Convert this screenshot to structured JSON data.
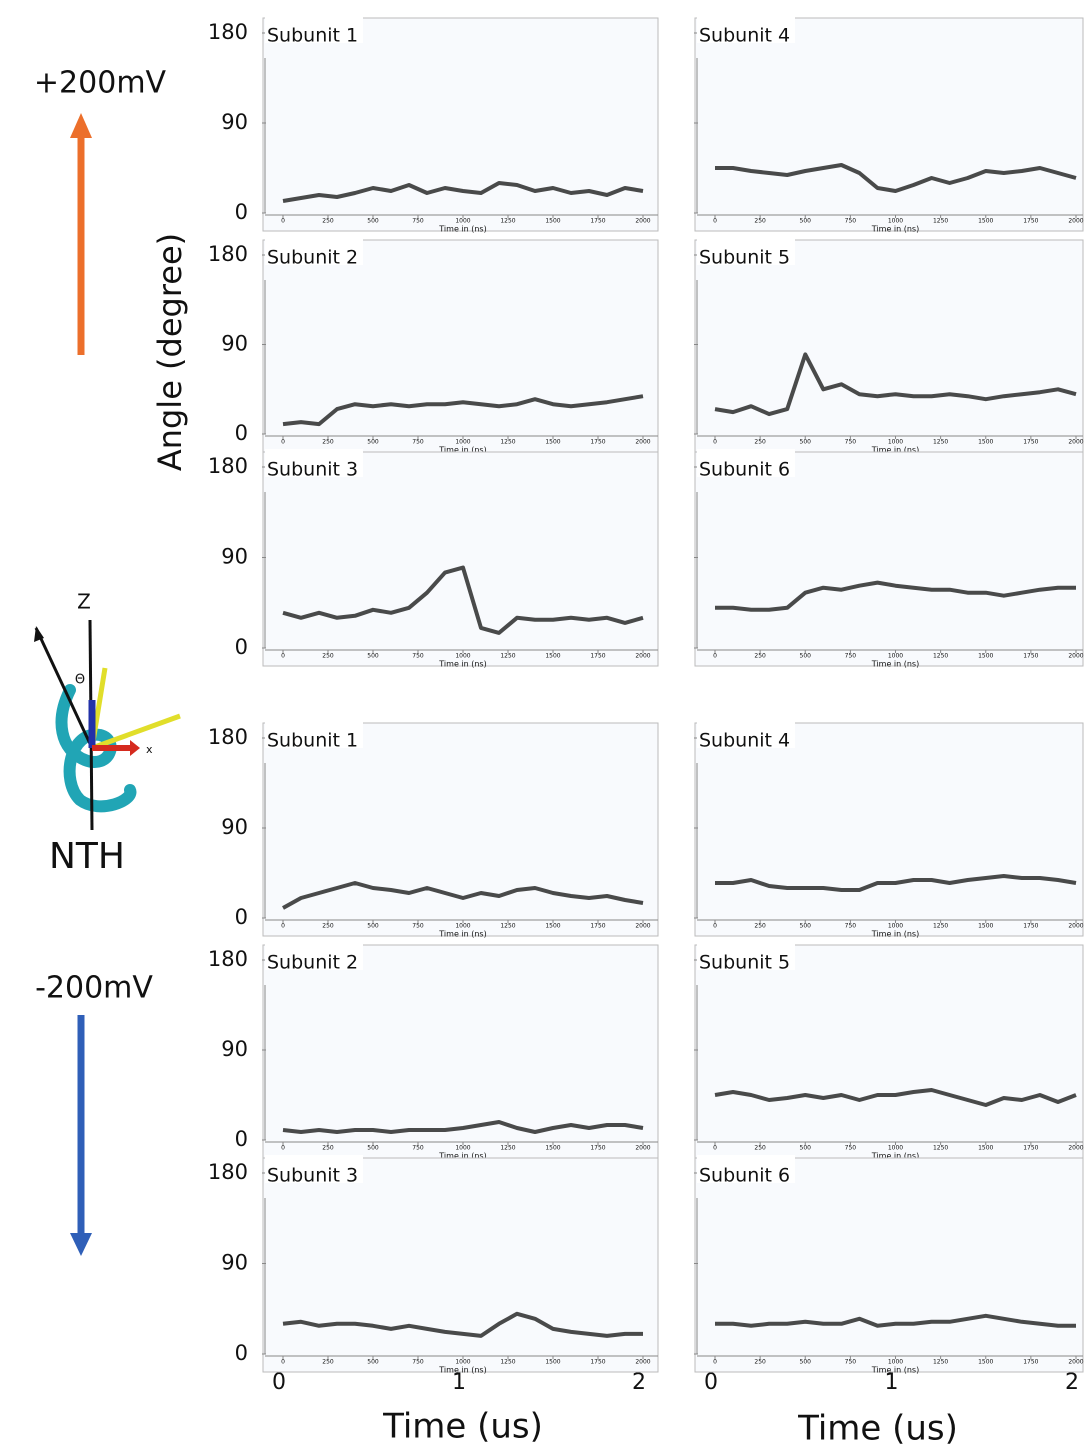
{
  "figure": {
    "top_label": "+200mV",
    "bottom_label": "-200mV",
    "molecule_label": "NTH",
    "axis_z": "Z",
    "axis_theta": "Θ",
    "axis_x": "x",
    "y_label": "Angle (degree)",
    "time_label": "Time (us)",
    "time_lim": [
      0,
      2
    ],
    "time_ticks": [
      0,
      1,
      2
    ]
  },
  "chart_data": [
    {
      "type": "line",
      "title": "Subunit 1",
      "xlabel": "Time in (ns)",
      "color": "#2a2a2a",
      "x": [
        0,
        100,
        200,
        300,
        400,
        500,
        600,
        700,
        800,
        900,
        1000,
        1100,
        1200,
        1300,
        1400,
        1500,
        1600,
        1700,
        1800,
        1900,
        2000
      ],
      "values": [
        12,
        15,
        18,
        16,
        20,
        25,
        22,
        28,
        20,
        25,
        22,
        20,
        30,
        28,
        22,
        25,
        20,
        22,
        18,
        25,
        22
      ],
      "xlim": [
        0,
        2000
      ],
      "ylim": [
        0,
        180
      ],
      "xticks": [
        0,
        250,
        500,
        750,
        1000,
        1250,
        1500,
        1750,
        2000
      ],
      "yticks": [
        0,
        90,
        180
      ]
    },
    {
      "type": "line",
      "title": "Subunit 2",
      "xlabel": "Time in (ns)",
      "color": "#2a2a2a",
      "x": [
        0,
        100,
        200,
        300,
        400,
        500,
        600,
        700,
        800,
        900,
        1000,
        1100,
        1200,
        1300,
        1400,
        1500,
        1600,
        1700,
        1800,
        1900,
        2000
      ],
      "values": [
        10,
        12,
        10,
        25,
        30,
        28,
        30,
        28,
        30,
        30,
        32,
        30,
        28,
        30,
        35,
        30,
        28,
        30,
        32,
        35,
        38
      ],
      "xlim": [
        0,
        2000
      ],
      "ylim": [
        0,
        180
      ],
      "xticks": [
        0,
        250,
        500,
        750,
        1000,
        1250,
        1500,
        1750,
        2000
      ],
      "yticks": [
        0,
        90,
        180
      ]
    },
    {
      "type": "line",
      "title": "Subunit 3",
      "xlabel": "Time in (ns)",
      "color": "#2a2a2a",
      "x": [
        0,
        100,
        200,
        300,
        400,
        500,
        600,
        700,
        800,
        900,
        1000,
        1100,
        1200,
        1300,
        1400,
        1500,
        1600,
        1700,
        1800,
        1900,
        2000
      ],
      "values": [
        35,
        30,
        35,
        30,
        32,
        38,
        35,
        40,
        55,
        75,
        80,
        20,
        15,
        30,
        28,
        28,
        30,
        28,
        30,
        25,
        30
      ],
      "xlim": [
        0,
        2000
      ],
      "ylim": [
        0,
        180
      ],
      "xticks": [
        0,
        250,
        500,
        750,
        1000,
        1250,
        1500,
        1750,
        2000
      ],
      "yticks": [
        0,
        90,
        180
      ]
    },
    {
      "type": "line",
      "title": "Subunit 4",
      "xlabel": "Time in (ns)",
      "color": "#2a2a2a",
      "x": [
        0,
        100,
        200,
        300,
        400,
        500,
        600,
        700,
        800,
        900,
        1000,
        1100,
        1200,
        1300,
        1400,
        1500,
        1600,
        1700,
        1800,
        1900,
        2000
      ],
      "values": [
        45,
        45,
        42,
        40,
        38,
        42,
        45,
        48,
        40,
        25,
        22,
        28,
        35,
        30,
        35,
        42,
        40,
        42,
        45,
        40,
        35
      ],
      "xlim": [
        0,
        2000
      ],
      "ylim": [
        0,
        180
      ],
      "xticks": [
        0,
        250,
        500,
        750,
        1000,
        1250,
        1500,
        1750,
        2000
      ],
      "yticks": [
        0,
        90,
        180
      ]
    },
    {
      "type": "line",
      "title": "Subunit 5",
      "xlabel": "Time in (ns)",
      "color": "#2a2a2a",
      "x": [
        0,
        100,
        200,
        300,
        400,
        500,
        600,
        700,
        800,
        900,
        1000,
        1100,
        1200,
        1300,
        1400,
        1500,
        1600,
        1700,
        1800,
        1900,
        2000
      ],
      "values": [
        25,
        22,
        28,
        20,
        25,
        80,
        45,
        50,
        40,
        38,
        40,
        38,
        38,
        40,
        38,
        35,
        38,
        40,
        42,
        45,
        40
      ],
      "xlim": [
        0,
        2000
      ],
      "ylim": [
        0,
        180
      ],
      "xticks": [
        0,
        250,
        500,
        750,
        1000,
        1250,
        1500,
        1750,
        2000
      ],
      "yticks": [
        0,
        90,
        180
      ]
    },
    {
      "type": "line",
      "title": "Subunit 6",
      "xlabel": "Time in (ns)",
      "color": "#2a2a2a",
      "x": [
        0,
        100,
        200,
        300,
        400,
        500,
        600,
        700,
        800,
        900,
        1000,
        1100,
        1200,
        1300,
        1400,
        1500,
        1600,
        1700,
        1800,
        1900,
        2000
      ],
      "values": [
        40,
        40,
        38,
        38,
        40,
        55,
        60,
        58,
        62,
        65,
        62,
        60,
        58,
        58,
        55,
        55,
        52,
        55,
        58,
        60,
        60
      ],
      "xlim": [
        0,
        2000
      ],
      "ylim": [
        0,
        180
      ],
      "xticks": [
        0,
        250,
        500,
        750,
        1000,
        1250,
        1500,
        1750,
        2000
      ],
      "yticks": [
        0,
        90,
        180
      ]
    },
    {
      "type": "line",
      "title": "Subunit 1",
      "xlabel": "Time in (ns)",
      "color": "#2a2a2a",
      "x": [
        0,
        100,
        200,
        300,
        400,
        500,
        600,
        700,
        800,
        900,
        1000,
        1100,
        1200,
        1300,
        1400,
        1500,
        1600,
        1700,
        1800,
        1900,
        2000
      ],
      "values": [
        10,
        20,
        25,
        30,
        35,
        30,
        28,
        25,
        30,
        25,
        20,
        25,
        22,
        28,
        30,
        25,
        22,
        20,
        22,
        18,
        15
      ],
      "xlim": [
        0,
        2000
      ],
      "ylim": [
        0,
        180
      ],
      "xticks": [
        0,
        250,
        500,
        750,
        1000,
        1250,
        1500,
        1750,
        2000
      ],
      "yticks": [
        0,
        90,
        180
      ]
    },
    {
      "type": "line",
      "title": "Subunit 2",
      "xlabel": "Time in (ns)",
      "color": "#2a2a2a",
      "x": [
        0,
        100,
        200,
        300,
        400,
        500,
        600,
        700,
        800,
        900,
        1000,
        1100,
        1200,
        1300,
        1400,
        1500,
        1600,
        1700,
        1800,
        1900,
        2000
      ],
      "values": [
        10,
        8,
        10,
        8,
        10,
        10,
        8,
        10,
        10,
        10,
        12,
        15,
        18,
        12,
        8,
        12,
        15,
        12,
        15,
        15,
        12
      ],
      "xlim": [
        0,
        2000
      ],
      "ylim": [
        0,
        180
      ],
      "xticks": [
        0,
        250,
        500,
        750,
        1000,
        1250,
        1500,
        1750,
        2000
      ],
      "yticks": [
        0,
        90,
        180
      ]
    },
    {
      "type": "line",
      "title": "Subunit 3",
      "xlabel": "Time in (ns)",
      "color": "#2a2a2a",
      "x": [
        0,
        100,
        200,
        300,
        400,
        500,
        600,
        700,
        800,
        900,
        1000,
        1100,
        1200,
        1300,
        1400,
        1500,
        1600,
        1700,
        1800,
        1900,
        2000
      ],
      "values": [
        30,
        32,
        28,
        30,
        30,
        28,
        25,
        28,
        25,
        22,
        20,
        18,
        30,
        40,
        35,
        25,
        22,
        20,
        18,
        20,
        20
      ],
      "xlim": [
        0,
        2000
      ],
      "ylim": [
        0,
        180
      ],
      "xticks": [
        0,
        250,
        500,
        750,
        1000,
        1250,
        1500,
        1750,
        2000
      ],
      "yticks": [
        0,
        90,
        180
      ]
    },
    {
      "type": "line",
      "title": "Subunit 4",
      "xlabel": "Time in (ns)",
      "color": "#2a2a2a",
      "x": [
        0,
        100,
        200,
        300,
        400,
        500,
        600,
        700,
        800,
        900,
        1000,
        1100,
        1200,
        1300,
        1400,
        1500,
        1600,
        1700,
        1800,
        1900,
        2000
      ],
      "values": [
        35,
        35,
        38,
        32,
        30,
        30,
        30,
        28,
        28,
        35,
        35,
        38,
        38,
        35,
        38,
        40,
        42,
        40,
        40,
        38,
        35
      ],
      "xlim": [
        0,
        2000
      ],
      "ylim": [
        0,
        180
      ],
      "xticks": [
        0,
        250,
        500,
        750,
        1000,
        1250,
        1500,
        1750,
        2000
      ],
      "yticks": [
        0,
        90,
        180
      ]
    },
    {
      "type": "line",
      "title": "Subunit 5",
      "xlabel": "Time in (ns)",
      "color": "#2a2a2a",
      "x": [
        0,
        100,
        200,
        300,
        400,
        500,
        600,
        700,
        800,
        900,
        1000,
        1100,
        1200,
        1300,
        1400,
        1500,
        1600,
        1700,
        1800,
        1900,
        2000
      ],
      "values": [
        45,
        48,
        45,
        40,
        42,
        45,
        42,
        45,
        40,
        45,
        45,
        48,
        50,
        45,
        40,
        35,
        42,
        40,
        45,
        38,
        45
      ],
      "xlim": [
        0,
        2000
      ],
      "ylim": [
        0,
        180
      ],
      "xticks": [
        0,
        250,
        500,
        750,
        1000,
        1250,
        1500,
        1750,
        2000
      ],
      "yticks": [
        0,
        90,
        180
      ]
    },
    {
      "type": "line",
      "title": "Subunit 6",
      "xlabel": "Time in (ns)",
      "color": "#2a2a2a",
      "x": [
        0,
        100,
        200,
        300,
        400,
        500,
        600,
        700,
        800,
        900,
        1000,
        1100,
        1200,
        1300,
        1400,
        1500,
        1600,
        1700,
        1800,
        1900,
        2000
      ],
      "values": [
        30,
        30,
        28,
        30,
        30,
        32,
        30,
        30,
        35,
        28,
        30,
        30,
        32,
        32,
        35,
        38,
        35,
        32,
        30,
        28,
        28
      ],
      "xlim": [
        0,
        2000
      ],
      "ylim": [
        0,
        180
      ],
      "xticks": [
        0,
        250,
        500,
        750,
        1000,
        1250,
        1500,
        1750,
        2000
      ],
      "yticks": [
        0,
        90,
        180
      ]
    }
  ]
}
